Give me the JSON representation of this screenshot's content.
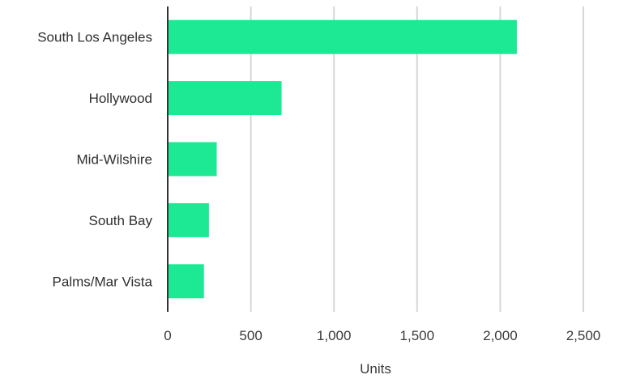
{
  "chart_data": {
    "type": "bar",
    "orientation": "horizontal",
    "categories": [
      "South Los Angeles",
      "Hollywood",
      "Mid-Wilshire",
      "South Bay",
      "Palms/Mar Vista"
    ],
    "values": [
      2100,
      685,
      295,
      248,
      218
    ],
    "xlabel": "Units",
    "ylabel": "",
    "xlim": [
      0,
      2500
    ],
    "x_ticks": [
      0,
      500,
      1000,
      1500,
      2000,
      2500
    ],
    "x_tick_labels": [
      "0",
      "500",
      "1,000",
      "1,500",
      "2,000",
      "2,500"
    ],
    "grid": "vertical",
    "legend": "none",
    "bar_color": "#1de994"
  }
}
